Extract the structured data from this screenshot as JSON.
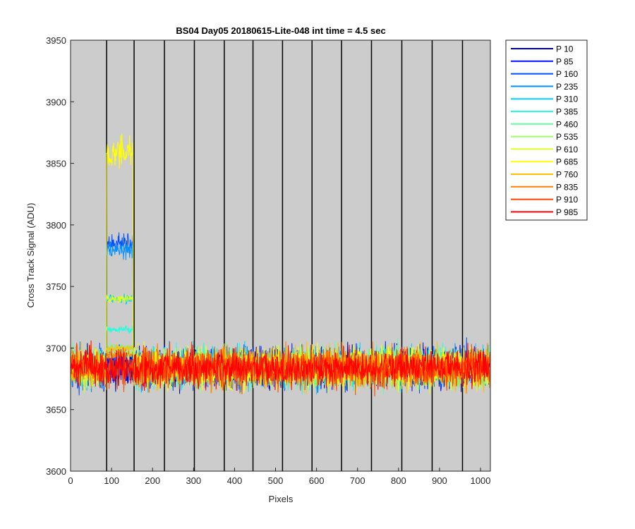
{
  "chart_data": {
    "type": "line",
    "title": "BS04 Day05 20180615-Lite-048 int time = 4.5 sec",
    "xlabel": "Pixels",
    "ylabel": "Cross Track Signal (ADU)",
    "xlim": [
      0,
      1024
    ],
    "ylim": [
      3600,
      3950
    ],
    "xticks": [
      0,
      100,
      200,
      300,
      400,
      500,
      600,
      700,
      800,
      900,
      1000
    ],
    "yticks": [
      3600,
      3650,
      3700,
      3750,
      3800,
      3850,
      3900,
      3950
    ],
    "grid": false,
    "background": "#cccccc",
    "legend_position": "outside-top-right",
    "vertical_lines_x": [
      88,
      155,
      229,
      302,
      375,
      445,
      517,
      589,
      661,
      734,
      808,
      882,
      956
    ],
    "baseline": {
      "mean": 3684,
      "noise_range": [
        3650,
        3720
      ]
    },
    "illuminated_region": {
      "x_start": 88,
      "x_end": 152
    },
    "series": [
      {
        "name": "P 10",
        "color": "#00008f",
        "peak_level": 3690
      },
      {
        "name": "P 85",
        "color": "#0010ff",
        "peak_level": 3690
      },
      {
        "name": "P 160",
        "color": "#0050ff",
        "peak_level": 3785
      },
      {
        "name": "P 235",
        "color": "#0090ff",
        "peak_level": 3780
      },
      {
        "name": "P 310",
        "color": "#00d0ff",
        "peak_level": 3740
      },
      {
        "name": "P 385",
        "color": "#20ffdf",
        "peak_level": 3715
      },
      {
        "name": "P 460",
        "color": "#60ff9f",
        "peak_level": 3700
      },
      {
        "name": "P 535",
        "color": "#9fff60",
        "peak_level": 3695
      },
      {
        "name": "P 610",
        "color": "#dfff20",
        "peak_level": 3740
      },
      {
        "name": "P 685",
        "color": "#ffff00",
        "peak_level": 3858
      },
      {
        "name": "P 760",
        "color": "#ffc000",
        "peak_level": 3700
      },
      {
        "name": "P 835",
        "color": "#ff8000",
        "peak_level": 3695
      },
      {
        "name": "P 910",
        "color": "#ff4000",
        "peak_level": 3690
      },
      {
        "name": "P 985",
        "color": "#ff0000",
        "peak_level": 3688
      }
    ]
  }
}
